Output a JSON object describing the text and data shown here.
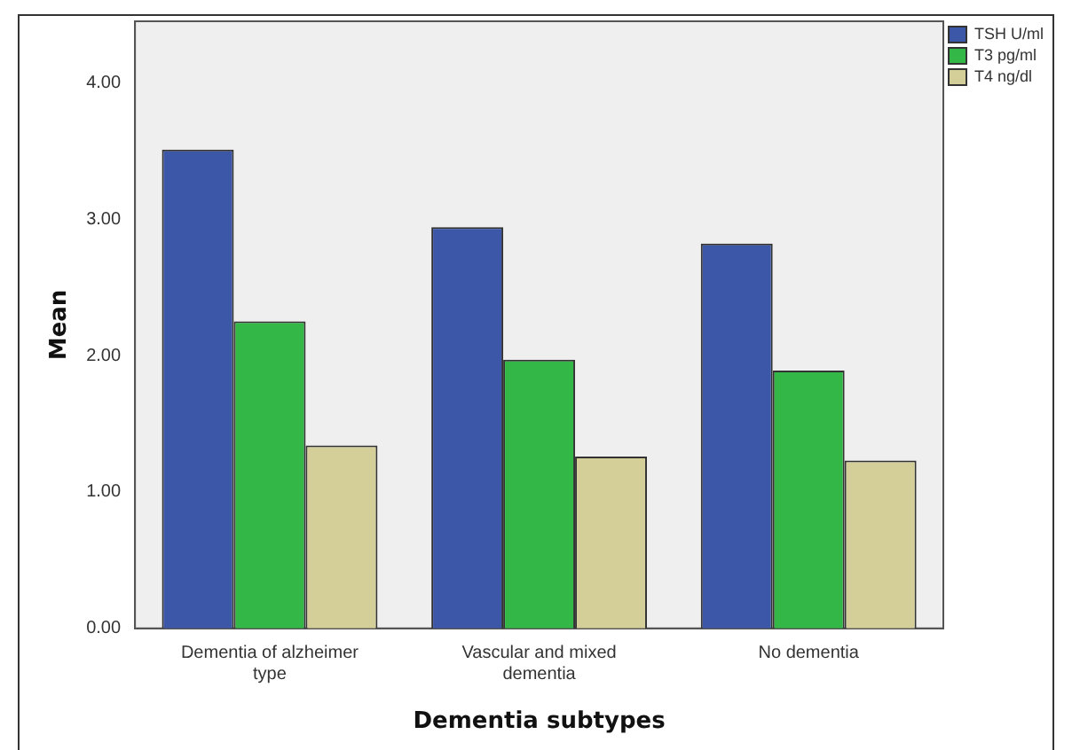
{
  "chart_data": {
    "type": "bar",
    "xlabel": "Dementia subtypes",
    "ylabel": "Mean",
    "categories": [
      "Dementia of alzheimer type",
      "Vascular and mixed dementia",
      "No dementia"
    ],
    "series": [
      {
        "name": "TSH U/ml",
        "color": "#3c56a8",
        "values": [
          3.51,
          2.94,
          2.82
        ]
      },
      {
        "name": "T3 pg/ml",
        "color": "#33b847",
        "values": [
          2.25,
          1.97,
          1.89
        ]
      },
      {
        "name": "T4 ng/dl",
        "color": "#d4cf98",
        "values": [
          1.34,
          1.26,
          1.23
        ]
      }
    ],
    "ylim": [
      0,
      4.45
    ],
    "yticks": [
      {
        "value": 0,
        "label": "0.00"
      },
      {
        "value": 1,
        "label": "1.00"
      },
      {
        "value": 2,
        "label": "2.00"
      },
      {
        "value": 3,
        "label": "3.00"
      },
      {
        "value": 4,
        "label": "4.00"
      }
    ],
    "grid": false,
    "legend": "top right"
  }
}
